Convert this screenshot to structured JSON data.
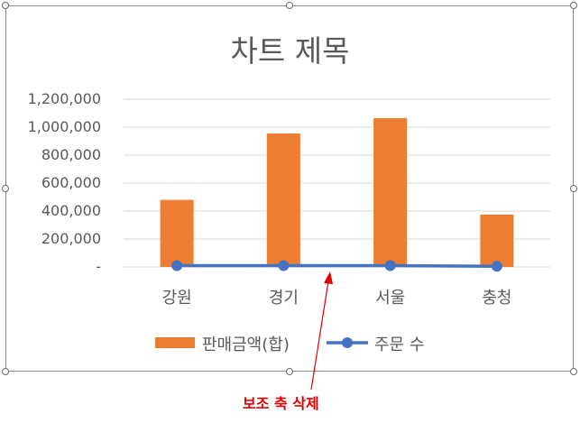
{
  "chart_data": {
    "type": "bar",
    "title": "차트 제목",
    "categories": [
      "강원",
      "경기",
      "서울",
      "충청"
    ],
    "series": [
      {
        "name": "판매금액(합)",
        "kind": "bar",
        "color": "#ed7d31",
        "values": [
          480000,
          955000,
          1065000,
          375000
        ]
      },
      {
        "name": "주문 수",
        "kind": "line",
        "color": "#4472c4",
        "values": [
          10000,
          10000,
          10000,
          5000
        ]
      }
    ],
    "y_ticks": [
      "-",
      "200,000",
      "400,000",
      "600,000",
      "800,000",
      "1,000,000",
      "1,200,000"
    ],
    "ylim": [
      0,
      1200000
    ],
    "grid": true,
    "legend_position": "bottom"
  },
  "annotation": {
    "text": "보조 축 삭제",
    "color": "#e00000"
  }
}
